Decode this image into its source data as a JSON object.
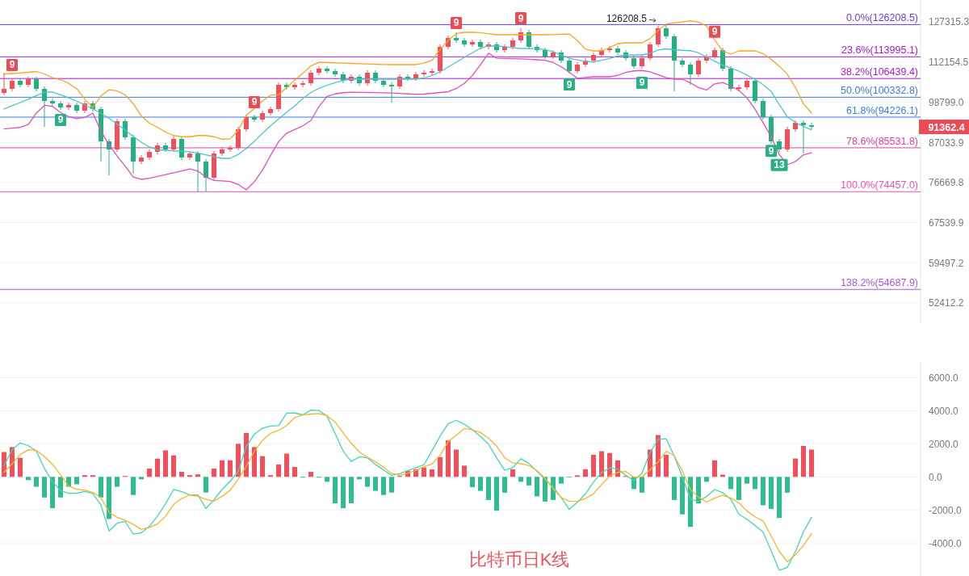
{
  "chart_data": [
    {
      "type": "candlestick",
      "title": "比特币日K线",
      "categories": [
        null,
        null,
        null,
        null,
        null,
        null,
        null,
        null,
        null,
        null,
        null,
        null,
        null,
        null,
        null,
        null,
        null,
        null,
        null,
        null,
        null,
        null,
        null,
        null,
        null,
        null,
        null,
        null,
        null,
        null,
        null,
        null,
        null,
        null,
        null,
        null,
        null,
        null,
        null,
        null,
        null,
        null,
        null,
        null,
        null,
        null,
        null,
        null,
        null,
        null,
        null,
        null,
        null,
        null,
        null,
        null,
        null,
        null,
        null,
        null,
        null,
        null,
        null,
        null,
        null,
        null,
        null,
        null,
        null,
        null,
        null,
        null,
        null,
        null,
        null,
        null,
        null,
        null,
        null,
        null,
        null,
        null,
        null,
        null,
        null,
        null,
        null,
        null,
        null,
        null,
        null,
        null,
        null,
        null,
        null,
        null,
        null,
        null,
        null,
        null,
        null
      ],
      "ohlc": [
        [
          101710,
          108410,
          100940,
          103020
        ],
        [
          103020,
          106500,
          102240,
          105680
        ],
        [
          105680,
          106500,
          103550,
          104340
        ],
        [
          104340,
          107040,
          103550,
          106220
        ],
        [
          106220,
          107040,
          102240,
          103020
        ],
        [
          103020,
          103810,
          91380,
          99150
        ],
        [
          99150,
          99920,
          97650,
          98400
        ],
        [
          98400,
          99150,
          96410,
          97150
        ],
        [
          97150,
          98650,
          96410,
          97900
        ],
        [
          97900,
          98650,
          95430,
          96160
        ],
        [
          96160,
          99150,
          95430,
          98400
        ],
        [
          98400,
          99150,
          95920,
          96660
        ],
        [
          96660,
          97400,
          81890,
          87280
        ],
        [
          87280,
          87950,
          78410,
          85080
        ],
        [
          85080,
          93740,
          84430,
          93030
        ],
        [
          93030,
          93740,
          87730,
          88400
        ],
        [
          88400,
          89080,
          78810,
          81890
        ],
        [
          81890,
          83580,
          81260,
          82940
        ],
        [
          82940,
          85080,
          82310,
          84430
        ],
        [
          84430,
          86840,
          83790,
          86170
        ],
        [
          86170,
          86840,
          84430,
          85080
        ],
        [
          85080,
          88630,
          84430,
          87950
        ],
        [
          87950,
          88630,
          82310,
          82940
        ],
        [
          82940,
          84650,
          82310,
          84000
        ],
        [
          84000,
          84650,
          74510,
          81890
        ],
        [
          81890,
          82520,
          74510,
          77810
        ],
        [
          77810,
          84650,
          77220,
          84000
        ],
        [
          84000,
          85730,
          83360,
          85080
        ],
        [
          85080,
          86170,
          84430,
          85520
        ],
        [
          85520,
          91380,
          84860,
          90680
        ],
        [
          90680,
          94940,
          89990,
          94220
        ],
        [
          94220,
          94940,
          92790,
          93500
        ],
        [
          93500,
          96160,
          92790,
          95430
        ],
        [
          95430,
          97400,
          94700,
          96660
        ],
        [
          96660,
          105140,
          95920,
          104340
        ],
        [
          104340,
          105140,
          102760,
          103550
        ],
        [
          103550,
          105140,
          102760,
          104340
        ],
        [
          104340,
          105680,
          103550,
          104880
        ],
        [
          104880,
          109250,
          104080,
          108410
        ],
        [
          108410,
          110650,
          107590,
          109810
        ],
        [
          109810,
          110650,
          108140,
          108970
        ],
        [
          108970,
          109810,
          107040,
          107860
        ],
        [
          107860,
          108690,
          104880,
          105680
        ],
        [
          105680,
          107860,
          104880,
          107040
        ],
        [
          107040,
          107860,
          104080,
          104880
        ],
        [
          104880,
          109250,
          104080,
          108410
        ],
        [
          108410,
          109250,
          104880,
          105680
        ],
        [
          105680,
          106500,
          103550,
          104340
        ],
        [
          104340,
          105140,
          98650,
          103810
        ],
        [
          103810,
          107860,
          103020,
          107040
        ],
        [
          107040,
          107860,
          105680,
          106500
        ],
        [
          106500,
          108690,
          105680,
          107860
        ],
        [
          107860,
          109250,
          107040,
          108410
        ],
        [
          108410,
          109810,
          107590,
          108970
        ],
        [
          108970,
          118540,
          108140,
          117640
        ],
        [
          117640,
          121910,
          116740,
          120980
        ],
        [
          120980,
          123160,
          119140,
          120060
        ],
        [
          120060,
          120980,
          117640,
          118540
        ],
        [
          118540,
          120370,
          117640,
          119450
        ],
        [
          119450,
          120370,
          116740,
          117640
        ],
        [
          117640,
          119450,
          116740,
          118540
        ],
        [
          118540,
          119450,
          115550,
          116440
        ],
        [
          116440,
          118540,
          115550,
          117640
        ],
        [
          117640,
          120980,
          116740,
          120060
        ],
        [
          120060,
          124740,
          119140,
          123160
        ],
        [
          123160,
          124110,
          116740,
          117640
        ],
        [
          117640,
          118540,
          115550,
          116440
        ],
        [
          116440,
          117330,
          113220,
          114090
        ],
        [
          114090,
          116440,
          113220,
          115550
        ],
        [
          115550,
          116440,
          111780,
          112640
        ],
        [
          112640,
          113510,
          108140,
          108970
        ],
        [
          108970,
          112070,
          108140,
          111220
        ],
        [
          111220,
          113510,
          110370,
          112640
        ],
        [
          112640,
          115550,
          111780,
          114670
        ],
        [
          114670,
          117330,
          113800,
          116440
        ],
        [
          116440,
          117940,
          115550,
          117040
        ],
        [
          117040,
          117940,
          114670,
          115550
        ],
        [
          115550,
          116440,
          112640,
          113510
        ],
        [
          113510,
          114380,
          109810,
          110650
        ],
        [
          110650,
          114380,
          109810,
          113510
        ],
        [
          113510,
          119450,
          112640,
          118540
        ],
        [
          118540,
          125700,
          117640,
          124740
        ],
        [
          124740,
          126208.5,
          120670,
          121600
        ],
        [
          121600,
          122540,
          102240,
          112640
        ],
        [
          112640,
          113510,
          110370,
          111220
        ],
        [
          111220,
          112070,
          104340,
          107860
        ],
        [
          107860,
          113510,
          107040,
          112640
        ],
        [
          112640,
          114970,
          111780,
          114090
        ],
        [
          114090,
          117330,
          113220,
          116440
        ],
        [
          116440,
          117330,
          108970,
          109810
        ],
        [
          109810,
          110650,
          102240,
          103020
        ],
        [
          103020,
          104340,
          102240,
          103550
        ],
        [
          103550,
          106500,
          102760,
          105680
        ],
        [
          105680,
          106500,
          98400,
          99150
        ],
        [
          99150,
          99920,
          93500,
          94220
        ],
        [
          94220,
          94940,
          86610,
          87280
        ],
        [
          87280,
          87950,
          84430,
          85080
        ],
        [
          85080,
          91380,
          84430,
          90680
        ],
        [
          90680,
          93270,
          89990,
          92550
        ],
        [
          92550,
          93270,
          84000,
          91850
        ],
        [
          91850,
          92550,
          90680,
          91362.4
        ]
      ],
      "colors": [
        "#f0505c",
        "#f0505c",
        "#26b07f",
        "#f0505c",
        "#26b07f",
        "#26b07f",
        "#26b07f",
        "#26b07f",
        "#f0505c",
        "#26b07f",
        "#f0505c",
        "#26b07f",
        "#26b07f",
        "#26b07f",
        "#f0505c",
        "#26b07f",
        "#26b07f",
        "#f0505c",
        "#f0505c",
        "#f0505c",
        "#26b07f",
        "#f0505c",
        "#26b07f",
        "#f0505c",
        "#26b07f",
        "#26b07f",
        "#f0505c",
        "#f0505c",
        "#f0505c",
        "#f0505c",
        "#f0505c",
        "#26b07f",
        "#f0505c",
        "#f0505c",
        "#f0505c",
        "#26b07f",
        "#f0505c",
        "#f0505c",
        "#f0505c",
        "#f0505c",
        "#26b07f",
        "#26b07f",
        "#26b07f",
        "#f0505c",
        "#26b07f",
        "#f0505c",
        "#26b07f",
        "#26b07f",
        "#26b07f",
        "#f0505c",
        "#26b07f",
        "#f0505c",
        "#f0505c",
        "#f0505c",
        "#f0505c",
        "#f0505c",
        "#26b07f",
        "#26b07f",
        "#f0505c",
        "#26b07f",
        "#f0505c",
        "#26b07f",
        "#f0505c",
        "#f0505c",
        "#f0505c",
        "#26b07f",
        "#26b07f",
        "#26b07f",
        "#f0505c",
        "#26b07f",
        "#26b07f",
        "#f0505c",
        "#f0505c",
        "#f0505c",
        "#f0505c",
        "#f0505c",
        "#26b07f",
        "#26b07f",
        "#26b07f",
        "#f0505c",
        "#f0505c",
        "#f0505c",
        "#26b07f",
        "#26b07f",
        "#26b07f",
        "#26b07f",
        "#f0505c",
        "#f0505c",
        "#f0505c",
        "#26b07f",
        "#26b07f",
        "#f0505c",
        "#f0505c",
        "#26b07f",
        "#26b07f",
        "#26b07f",
        "#26b07f",
        "#f0505c",
        "#f0505c",
        "#26b07f",
        "#26b07f"
      ],
      "series": [
        {
          "type": "line",
          "color": "#f5a623",
          "values": [
            107950,
            108140,
            108320,
            108550,
            108830,
            108000,
            106700,
            106020,
            104820,
            103100,
            99690,
            97150,
            100790,
            102720,
            102370,
            101080,
            98300,
            94590,
            92440,
            91270,
            89880,
            88910,
            88570,
            88570,
            88910,
            88910,
            88570,
            87840,
            87970,
            90410,
            94780,
            96860,
            99070,
            100980,
            101160,
            103460,
            105920,
            108120,
            110750,
            112020,
            111920,
            111830,
            111730,
            111640,
            111550,
            111450,
            111360,
            111270,
            111220,
            111220,
            111220,
            111220,
            111720,
            112720,
            116590,
            120030,
            122640,
            123160,
            123160,
            123070,
            122600,
            122220,
            122220,
            122220,
            122220,
            122220,
            122220,
            122220,
            122280,
            122400,
            122520,
            119980,
            116780,
            116140,
            116140,
            117340,
            118840,
            119140,
            119140,
            119140,
            120710,
            123840,
            126430,
            126870,
            127310,
            127750,
            127210,
            125680,
            120250,
            116130,
            114960,
            116140,
            116140,
            116140,
            115120,
            113090,
            110680,
            107890,
            103470,
            98300,
            95430
          ]
        },
        {
          "type": "line",
          "color": "#4dc4c9",
          "values": [
            96660,
            97660,
            98650,
            99710,
            100830,
            101940,
            102030,
            101080,
            100130,
            99090,
            97970,
            96720,
            95380,
            93870,
            92210,
            90470,
            88640,
            87070,
            85740,
            85010,
            84860,
            84720,
            84590,
            84480,
            84160,
            83630,
            83150,
            82730,
            82730,
            83750,
            85360,
            87300,
            89550,
            91690,
            93690,
            95690,
            97660,
            99920,
            101850,
            103160,
            104210,
            105020,
            105820,
            106220,
            106220,
            106220,
            106220,
            106220,
            106220,
            106220,
            106220,
            106220,
            106630,
            107450,
            108700,
            110380,
            112080,
            113810,
            115490,
            117120,
            117940,
            117940,
            117720,
            117270,
            117040,
            117040,
            116970,
            116620,
            115840,
            114650,
            113460,
            112870,
            112420,
            112190,
            112760,
            113390,
            114240,
            114670,
            114670,
            114670,
            115260,
            116450,
            116890,
            116590,
            116360,
            116220,
            115410,
            113950,
            112450,
            111020,
            110040,
            108970,
            107600,
            106150,
            104410,
            102190,
            98030,
            94360,
            92660,
            91510,
            90500
          ]
        },
        {
          "type": "line",
          "color": "#e44fb8",
          "values": [
            90790,
            91000,
            91210,
            92060,
            95450,
            97780,
            97470,
            95620,
            94400,
            93800,
            94140,
            95430,
            90140,
            86350,
            83350,
            80710,
            77970,
            77420,
            77670,
            78160,
            78610,
            79020,
            79470,
            79980,
            79480,
            77970,
            77160,
            77030,
            76890,
            76180,
            74890,
            76840,
            79690,
            83440,
            87200,
            89580,
            90580,
            91680,
            93200,
            97450,
            100560,
            101390,
            101780,
            101940,
            101890,
            101840,
            101800,
            101750,
            101660,
            101530,
            101390,
            101270,
            101330,
            101590,
            101850,
            102110,
            103100,
            104820,
            107480,
            111190,
            115320,
            113490,
            113420,
            113340,
            113260,
            113120,
            112930,
            112740,
            111930,
            110520,
            108540,
            106550,
            106820,
            107040,
            107040,
            107040,
            107520,
            108490,
            109040,
            109180,
            108750,
            107730,
            106720,
            106220,
            106220,
            105000,
            103460,
            102640,
            104670,
            105100,
            103950,
            102540,
            100140,
            96610,
            92650,
            88550,
            83750,
            81060,
            81900,
            83680,
            84180
          ]
        },
        {
          "type": "scatter",
          "name": "9",
          "marker": "square",
          "color": "#eb4b57",
          "values": [
            null,
            111084,
            null,
            null,
            null,
            null,
            null,
            null,
            null,
            null,
            null,
            null,
            null,
            null,
            null,
            null,
            null,
            null,
            null,
            null,
            null,
            null,
            null,
            null,
            null,
            null,
            null,
            null,
            null,
            null,
            null,
            98802,
            null,
            null,
            null,
            null,
            null,
            null,
            null,
            null,
            null,
            null,
            null,
            null,
            null,
            null,
            null,
            null,
            null,
            null,
            null,
            null,
            null,
            null,
            null,
            null,
            126835,
            null,
            null,
            null,
            null,
            null,
            null,
            null,
            128781,
            null,
            null,
            null,
            null,
            null,
            null,
            null,
            null,
            null,
            null,
            null,
            null,
            null,
            null,
            null,
            null,
            null,
            null,
            null,
            null,
            null,
            null,
            null,
            123400,
            null,
            null,
            null,
            null,
            null,
            null,
            null,
            null,
            null,
            null,
            null,
            null
          ]
        },
        {
          "type": "scatter",
          "name": "9",
          "marker": "square",
          "color": "#2bb083",
          "values": [
            null,
            null,
            null,
            null,
            null,
            null,
            null,
            93386,
            null,
            null,
            null,
            null,
            null,
            null,
            null,
            null,
            null,
            null,
            null,
            null,
            null,
            null,
            null,
            null,
            null,
            null,
            null,
            null,
            null,
            null,
            null,
            null,
            null,
            null,
            null,
            null,
            null,
            null,
            null,
            null,
            null,
            null,
            null,
            null,
            null,
            null,
            null,
            null,
            null,
            null,
            null,
            null,
            null,
            null,
            null,
            null,
            null,
            null,
            null,
            null,
            null,
            null,
            null,
            null,
            null,
            null,
            null,
            null,
            null,
            null,
            104463,
            null,
            null,
            null,
            null,
            null,
            null,
            null,
            null,
            105011,
            null,
            null,
            null,
            null,
            null,
            null,
            null,
            null,
            null,
            null,
            null,
            null,
            null,
            null,
            null,
            84713,
            null,
            null,
            null,
            null,
            null
          ]
        },
        {
          "type": "scatter",
          "name": "13",
          "marker": "square",
          "color": "#2bb083",
          "values": [
            null,
            null,
            null,
            null,
            null,
            null,
            null,
            null,
            null,
            null,
            null,
            null,
            null,
            null,
            null,
            null,
            null,
            null,
            null,
            null,
            null,
            null,
            null,
            null,
            null,
            null,
            null,
            null,
            null,
            null,
            null,
            null,
            null,
            null,
            null,
            null,
            null,
            null,
            null,
            null,
            null,
            null,
            null,
            null,
            null,
            null,
            null,
            null,
            null,
            null,
            null,
            null,
            null,
            null,
            null,
            null,
            null,
            null,
            null,
            null,
            null,
            null,
            null,
            null,
            null,
            null,
            null,
            null,
            null,
            null,
            null,
            null,
            null,
            null,
            null,
            null,
            null,
            null,
            null,
            null,
            null,
            null,
            null,
            null,
            null,
            null,
            null,
            null,
            null,
            null,
            null,
            null,
            null,
            null,
            null,
            null,
            80990,
            null,
            null,
            null,
            null
          ]
        }
      ],
      "ref_lines": [
        {
          "axis": "y",
          "value": 126208.5,
          "label": "0.0%(126208.5)",
          "color": "#6a3fd8"
        },
        {
          "axis": "y",
          "value": 113995.1,
          "label": "23.6%(113995.1)",
          "color": "#a81ad6"
        },
        {
          "axis": "y",
          "value": 106439.4,
          "label": "38.2%(106439.4)",
          "color": "#a81ad6"
        },
        {
          "axis": "y",
          "value": 100332.8,
          "label": "50.0%(100332.8)",
          "color": "#3b7be6"
        },
        {
          "axis": "y",
          "value": 94226.1,
          "label": "61.8%(94226.1)",
          "color": "#3b7be6"
        },
        {
          "axis": "y",
          "value": 85531.8,
          "label": "78.6%(85531.8)",
          "color": "#e040a8"
        },
        {
          "axis": "y",
          "value": 74457.0,
          "label": "100.0%(74457.0)",
          "color": "#f24fb6"
        },
        {
          "axis": "y",
          "value": 54687.9,
          "label": "138.2%(54687.9)",
          "color": "#a855e0"
        }
      ],
      "annotations": [
        {
          "text": "126208.5",
          "y": 126208.5
        },
        "91362.4"
      ],
      "ylim": [
        49163,
        136393
      ],
      "log": "y",
      "grid": "y",
      "tick_labels": "y",
      "yticks": [
        {
          "value": 127315.3,
          "label": "127315.3"
        },
        {
          "value": 112154.5,
          "label": "112154.5"
        },
        {
          "value": 98799.0,
          "label": "98799.0"
        },
        {
          "value": 87033.9,
          "label": "87033.9"
        },
        {
          "value": 76669.8,
          "label": "76669.8"
        },
        {
          "value": 67539.9,
          "label": "67539.9"
        },
        {
          "value": 59497.2,
          "label": "59497.2"
        },
        {
          "value": 52412.2,
          "label": "52412.2"
        }
      ]
    },
    {
      "type": "bar",
      "categories": [
        null,
        null,
        null,
        null,
        null,
        null,
        null,
        null,
        null,
        null,
        null,
        null,
        null,
        null,
        null,
        null,
        null,
        null,
        null,
        null,
        null,
        null,
        null,
        null,
        null,
        null,
        null,
        null,
        null,
        null,
        null,
        null,
        null,
        null,
        null,
        null,
        null,
        null,
        null,
        null,
        null,
        null,
        null,
        null,
        null,
        null,
        null,
        null,
        null,
        null,
        null,
        null,
        null,
        null,
        null,
        null,
        null,
        null,
        null,
        null,
        null,
        null,
        null,
        null,
        null,
        null,
        null,
        null,
        null,
        null,
        null,
        null,
        null,
        null,
        null,
        null,
        null,
        null,
        null,
        null,
        null,
        null,
        null,
        null,
        null,
        null,
        null,
        null,
        null,
        null,
        null,
        null,
        null,
        null,
        null,
        null,
        null,
        null,
        null,
        null,
        null
      ],
      "series": [
        {
          "type": "bar",
          "values": [
            1500,
            1800,
            1150,
            -200,
            -600,
            -1250,
            -1900,
            -1250,
            -600,
            -450,
            100,
            100,
            -1250,
            -2550,
            -600,
            50,
            -1100,
            -150,
            500,
            1100,
            1600,
            1300,
            300,
            100,
            150,
            -950,
            500,
            1000,
            1000,
            2000,
            2650,
            1800,
            1250,
            100,
            750,
            1400,
            600,
            -50,
            300,
            -50,
            -300,
            -1600,
            -1900,
            -1600,
            -150,
            -600,
            -850,
            -1100,
            -950,
            50,
            350,
            450,
            570,
            450,
            1200,
            2200,
            1650,
            680,
            -630,
            -850,
            -1400,
            -2050,
            -960,
            460,
            -300,
            -520,
            -1180,
            -1500,
            -1400,
            -410,
            -40,
            90,
            460,
            1330,
            1550,
            1440,
            1000,
            50,
            -740,
            -960,
            1650,
            2530,
            1330,
            -1400,
            -2270,
            -3030,
            -1610,
            -300,
            1000,
            130,
            -740,
            -1400,
            -410,
            -740,
            -1720,
            -1940,
            -2490,
            -960,
            1110,
            1870,
            1650
          ],
          "colors": [
            "#f0505c",
            "#f0505c",
            "#f0505c",
            "#2ebd8e",
            "#2ebd8e",
            "#2ebd8e",
            "#2ebd8e",
            "#2ebd8e",
            "#2ebd8e",
            "#2ebd8e",
            "#f0505c",
            "#f0505c",
            "#2ebd8e",
            "#2ebd8e",
            "#2ebd8e",
            "#f0505c",
            "#2ebd8e",
            "#2ebd8e",
            "#f0505c",
            "#f0505c",
            "#f0505c",
            "#f0505c",
            "#f0505c",
            "#f0505c",
            "#f0505c",
            "#2ebd8e",
            "#f0505c",
            "#f0505c",
            "#f0505c",
            "#f0505c",
            "#f0505c",
            "#f0505c",
            "#f0505c",
            "#f0505c",
            "#f0505c",
            "#f0505c",
            "#f0505c",
            "#2ebd8e",
            "#f0505c",
            "#2ebd8e",
            "#2ebd8e",
            "#2ebd8e",
            "#2ebd8e",
            "#2ebd8e",
            "#2ebd8e",
            "#2ebd8e",
            "#2ebd8e",
            "#2ebd8e",
            "#2ebd8e",
            "#f0505c",
            "#f0505c",
            "#f0505c",
            "#f0505c",
            "#f0505c",
            "#f0505c",
            "#f0505c",
            "#f0505c",
            "#f0505c",
            "#2ebd8e",
            "#2ebd8e",
            "#2ebd8e",
            "#2ebd8e",
            "#2ebd8e",
            "#f0505c",
            "#2ebd8e",
            "#2ebd8e",
            "#2ebd8e",
            "#2ebd8e",
            "#2ebd8e",
            "#2ebd8e",
            "#2ebd8e",
            "#f0505c",
            "#f0505c",
            "#f0505c",
            "#f0505c",
            "#f0505c",
            "#f0505c",
            "#f0505c",
            "#2ebd8e",
            "#2ebd8e",
            "#f0505c",
            "#f0505c",
            "#f0505c",
            "#2ebd8e",
            "#2ebd8e",
            "#2ebd8e",
            "#2ebd8e",
            "#2ebd8e",
            "#f0505c",
            "#f0505c",
            "#2ebd8e",
            "#2ebd8e",
            "#2ebd8e",
            "#2ebd8e",
            "#2ebd8e",
            "#2ebd8e",
            "#2ebd8e",
            "#2ebd8e",
            "#f0505c",
            "#f0505c",
            "#f0505c"
          ]
        },
        {
          "type": "line",
          "color": "#41d6b8",
          "values": [
            670,
            1640,
            2050,
            1880,
            1560,
            510,
            -290,
            -840,
            -1000,
            -990,
            -890,
            -1010,
            -1700,
            -3280,
            -2810,
            -2700,
            -3470,
            -3390,
            -2990,
            -2380,
            -1630,
            -770,
            -900,
            -1090,
            -1090,
            -1920,
            -1390,
            -770,
            -270,
            330,
            1830,
            2580,
            2940,
            3070,
            3100,
            3850,
            3860,
            3750,
            4040,
            4010,
            3670,
            2610,
            1560,
            920,
            1210,
            1150,
            750,
            410,
            90,
            190,
            380,
            560,
            730,
            1580,
            2460,
            3220,
            3420,
            3180,
            2850,
            2440,
            1980,
            1140,
            400,
            550,
            1090,
            810,
            330,
            -140,
            -610,
            -1250,
            -1970,
            -1540,
            -1040,
            -310,
            250,
            550,
            460,
            100,
            -230,
            220,
            1470,
            2260,
            2300,
            1260,
            0,
            -1350,
            -1480,
            -1190,
            -770,
            -960,
            -1360,
            -2260,
            -2570,
            -2940,
            -3340,
            -4480,
            -5650,
            -5480,
            -4520,
            -3320,
            -2450
          ]
        },
        {
          "type": "line",
          "color": "#f7b52c",
          "values": [
            280,
            780,
            1350,
            1630,
            1600,
            1230,
            760,
            120,
            -560,
            -750,
            -810,
            -940,
            -1260,
            -2140,
            -2450,
            -2620,
            -2880,
            -3170,
            -3060,
            -2850,
            -2390,
            -1670,
            -1310,
            -1100,
            -1180,
            -1360,
            -1470,
            -1180,
            -810,
            -150,
            630,
            1540,
            2200,
            2630,
            2810,
            3100,
            3590,
            3740,
            3800,
            3830,
            3690,
            3320,
            2660,
            2030,
            1500,
            1180,
            910,
            570,
            210,
            90,
            220,
            400,
            620,
            780,
            1300,
            2120,
            2520,
            2920,
            2840,
            2680,
            2330,
            1860,
            1150,
            840,
            800,
            680,
            380,
            -90,
            -740,
            -1250,
            -1470,
            -1490,
            -1310,
            -1020,
            -470,
            50,
            270,
            320,
            -30,
            0,
            430,
            900,
            1550,
            1280,
            340,
            -770,
            -1230,
            -1530,
            -1290,
            -1120,
            -1280,
            -1580,
            -2060,
            -2420,
            -2670,
            -3580,
            -4510,
            -5140,
            -4710,
            -4160,
            -3430
          ]
        }
      ],
      "ylim": [
        -6000,
        7000
      ],
      "grid": "y",
      "tick_labels": "y",
      "yticks": [
        {
          "value": 6000,
          "label": "6000.0"
        },
        {
          "value": 4000,
          "label": "4000.0"
        },
        {
          "value": 2000,
          "label": "2000.0"
        },
        {
          "value": 0,
          "label": "0.0"
        },
        {
          "value": -2000,
          "label": "-2000.0"
        },
        {
          "value": -4000,
          "label": "-4000.0"
        }
      ]
    }
  ]
}
